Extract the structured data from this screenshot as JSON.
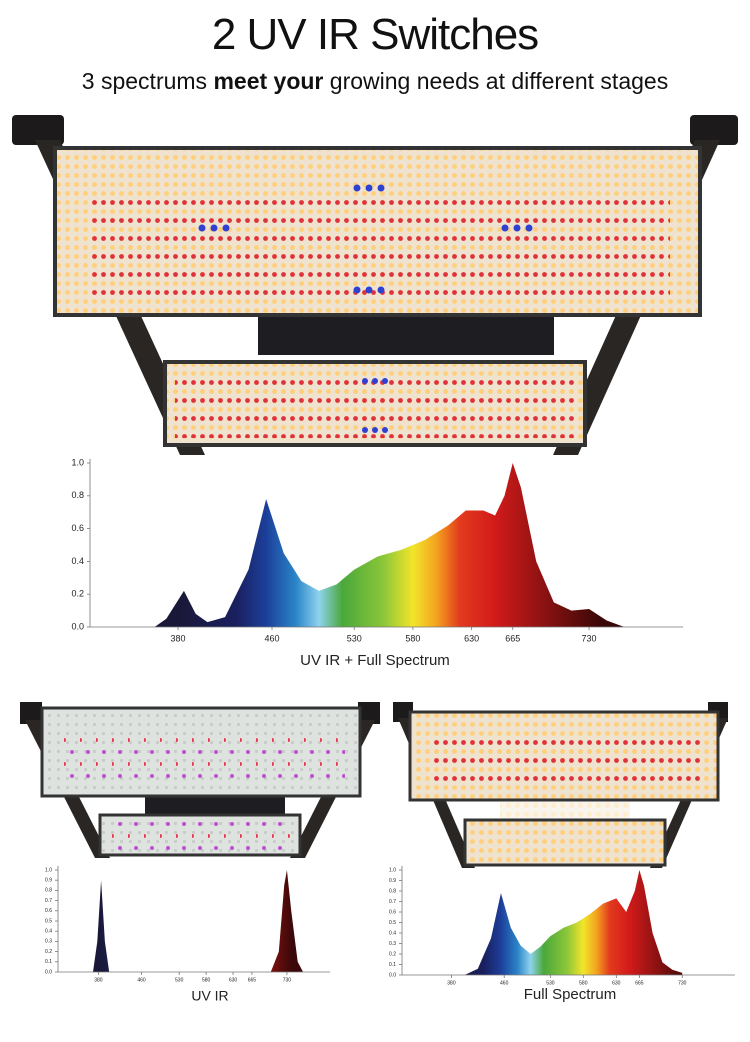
{
  "header": {
    "title": "2 UV IR Switches",
    "subtitle": {
      "before": "3 spectrums",
      "bold": "meet your",
      "after": "growing needs at different stages"
    }
  },
  "chart_data": [
    {
      "type": "area",
      "title": "UV IR + Full Spectrum",
      "x": [
        360,
        370,
        385,
        395,
        405,
        420,
        440,
        455,
        470,
        485,
        500,
        515,
        530,
        550,
        570,
        590,
        610,
        625,
        640,
        650,
        658,
        665,
        672,
        685,
        700,
        715,
        730,
        745,
        760
      ],
      "values": [
        0,
        0.05,
        0.22,
        0.08,
        0.03,
        0.06,
        0.35,
        0.78,
        0.45,
        0.28,
        0.22,
        0.26,
        0.35,
        0.43,
        0.47,
        0.53,
        0.62,
        0.71,
        0.71,
        0.68,
        0.8,
        1.0,
        0.85,
        0.4,
        0.15,
        0.1,
        0.11,
        0.04,
        0
      ],
      "xlim": [
        305,
        810
      ],
      "ylim": [
        0,
        1
      ],
      "xticks": [
        380,
        460,
        530,
        580,
        630,
        665,
        730
      ],
      "yticks": [
        {
          "value": 0,
          "label": "0.0"
        },
        0.2,
        0.4,
        0.6,
        0.8,
        {
          "value": 1,
          "label": "1.0"
        }
      ]
    },
    {
      "type": "area",
      "title": "UV IR",
      "x": [
        370,
        378,
        385,
        392,
        400,
        700,
        715,
        725,
        730,
        738,
        750,
        760
      ],
      "values": [
        0,
        0.3,
        0.9,
        0.3,
        0,
        0,
        0.2,
        0.85,
        1.0,
        0.6,
        0.1,
        0
      ],
      "xlim": [
        305,
        810
      ],
      "ylim": [
        0,
        1
      ],
      "xticks": [
        380,
        460,
        530,
        580,
        630,
        665,
        730
      ],
      "yticks": [
        {
          "value": 0,
          "label": "0.0"
        },
        0.1,
        0.2,
        0.3,
        0.4,
        0.5,
        0.6,
        0.7,
        0.8,
        0.9,
        {
          "value": 1,
          "label": "1.0"
        }
      ]
    },
    {
      "type": "area",
      "title": "Full Spectrum",
      "x": [
        400,
        420,
        440,
        455,
        470,
        485,
        500,
        515,
        530,
        550,
        570,
        590,
        610,
        630,
        645,
        658,
        665,
        672,
        685,
        700,
        715,
        730
      ],
      "values": [
        0,
        0.06,
        0.35,
        0.78,
        0.45,
        0.28,
        0.2,
        0.27,
        0.37,
        0.45,
        0.5,
        0.58,
        0.68,
        0.73,
        0.6,
        0.8,
        1.0,
        0.85,
        0.4,
        0.12,
        0.05,
        0.02
      ],
      "xlim": [
        305,
        810
      ],
      "ylim": [
        0,
        1
      ],
      "xticks": [
        380,
        460,
        530,
        580,
        630,
        665,
        730
      ],
      "yticks": [
        {
          "value": 0,
          "label": "0.0"
        },
        0.1,
        0.2,
        0.3,
        0.4,
        0.5,
        0.6,
        0.7,
        0.8,
        0.9,
        {
          "value": 1,
          "label": "1.0"
        }
      ]
    }
  ]
}
